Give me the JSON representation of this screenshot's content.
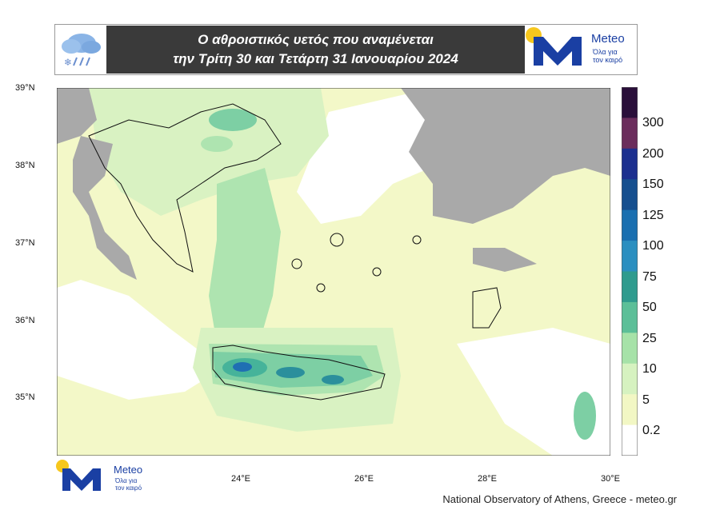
{
  "header": {
    "title_line1": "Ο αθροιστικός υετός που αναμένεται",
    "title_line2": "την Τρίτη 30 και Τετάρτη 31 Ιανουαρίου 2024"
  },
  "logo": {
    "brand": "Meteo",
    "tagline_line1": "Όλα για",
    "tagline_line2": "τον καιρό",
    "colors": {
      "sun": "#f7c71d",
      "mark": "#1a3fa3"
    }
  },
  "weather_icon": "rain-snow-cloud-icon",
  "map": {
    "lat_labels": [
      "39°N",
      "38°N",
      "37°N",
      "36°N",
      "35°N"
    ],
    "lon_labels": [
      "24°E",
      "26°E",
      "28°E",
      "30°E"
    ],
    "colors": {
      "land_outside": "#a9a9a9",
      "sea_none": "#ffffff",
      "precip_0_2": "#f3f8c8",
      "precip_5": "#d9f2c2",
      "precip_10": "#aee4b0",
      "precip_25": "#7dcfa4",
      "precip_50": "#46b39a",
      "precip_75": "#2b8f9c",
      "precip_100": "#1f6fb3",
      "precip_125": "#1a4fa0"
    }
  },
  "legend": {
    "labels": [
      "300",
      "200",
      "150",
      "125",
      "100",
      "75",
      "50",
      "25",
      "10",
      "5",
      "0.2"
    ],
    "colors": [
      "#2a0f3a",
      "#6b2d5c",
      "#1c2f8f",
      "#164f8f",
      "#1a6fb0",
      "#2b8fc0",
      "#2f9b8e",
      "#5cbf98",
      "#a6e2a8",
      "#d6f2c0",
      "#f2f7c4",
      "#ffffff"
    ]
  },
  "credit": "National Observatory of Athens, Greece - meteo.gr"
}
